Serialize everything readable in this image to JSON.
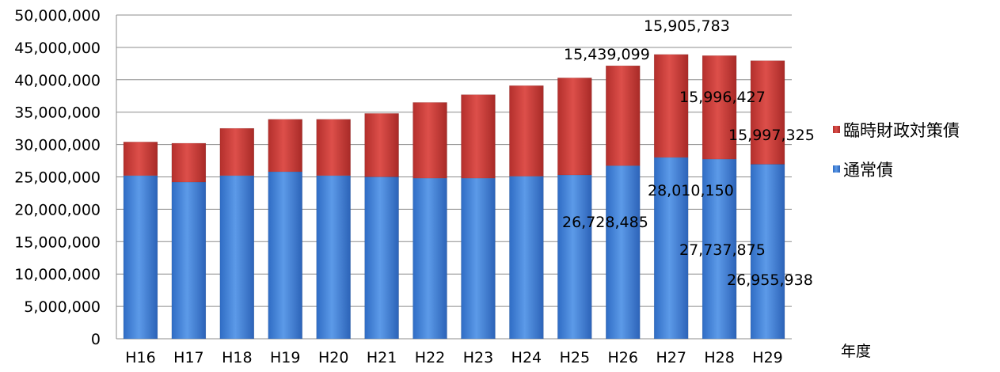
{
  "chart_data": {
    "type": "bar",
    "stacked": true,
    "categories": [
      "H16",
      "H17",
      "H18",
      "H19",
      "H20",
      "H21",
      "H22",
      "H23",
      "H24",
      "H25",
      "H26",
      "H27",
      "H28",
      "H29"
    ],
    "series": [
      {
        "name": "通常債",
        "color": "#3f7fd6",
        "values": [
          25200000,
          24200000,
          25200000,
          25800000,
          25200000,
          25000000,
          24800000,
          24800000,
          25100000,
          25300000,
          26728485,
          28010150,
          27737875,
          26955938
        ]
      },
      {
        "name": "臨時財政対策債",
        "color": "#cc3c38",
        "values": [
          5200000,
          6000000,
          7300000,
          8100000,
          8700000,
          9800000,
          11700000,
          12900000,
          14000000,
          15000000,
          15439099,
          15905783,
          15996427,
          15997325
        ]
      }
    ],
    "yticks": [
      "0",
      "5,000,000",
      "10,000,000",
      "15,000,000",
      "20,000,000",
      "25,000,000",
      "30,000,000",
      "35,000,000",
      "40,000,000",
      "45,000,000",
      "50,000,000"
    ],
    "ylim": [
      0,
      50000000
    ],
    "xlabel": "年度",
    "grid": true,
    "legend_position": "right",
    "data_labels": [
      {
        "text": "15,439,099"
      },
      {
        "text": "15,905,783"
      },
      {
        "text": "15,996,427"
      },
      {
        "text": "15,997,325"
      },
      {
        "text": "26,728,485"
      },
      {
        "text": "28,010,150"
      },
      {
        "text": "27,737,875"
      },
      {
        "text": "26,955,938"
      }
    ]
  }
}
